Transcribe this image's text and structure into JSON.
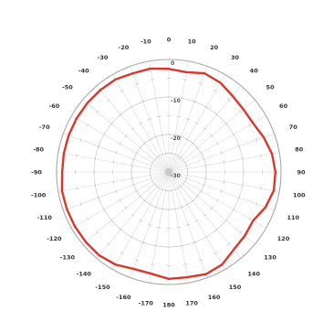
{
  "chart_data": {
    "type": "polar-line",
    "title": "",
    "angle_unit": "degrees",
    "zero_direction": "top",
    "angle_direction": "clockwise",
    "angle_ticks": [
      0,
      10,
      20,
      30,
      40,
      50,
      60,
      70,
      80,
      90,
      100,
      110,
      120,
      130,
      140,
      150,
      160,
      170,
      180,
      -170,
      -160,
      -150,
      -140,
      -130,
      -120,
      -110,
      -100,
      -90,
      -80,
      -70,
      -60,
      -50,
      -40,
      -30,
      -20,
      -10
    ],
    "angle_tick_labels": [
      "0",
      "10",
      "20",
      "30",
      "40",
      "50",
      "60",
      "70",
      "80",
      "90",
      "100",
      "110",
      "120",
      "130",
      "140",
      "150",
      "160",
      "170",
      "180",
      "-170",
      "-160",
      "-150",
      "-140",
      "-130",
      "-120",
      "-110",
      "-100",
      "-90",
      "-80",
      "-70",
      "-60",
      "-50",
      "-40",
      "-30",
      "-20",
      "-10"
    ],
    "radial_range": [
      -30,
      0
    ],
    "radial_ticks": [
      0,
      -10,
      -20,
      -30
    ],
    "radial_tick_labels": [
      "0",
      "-10",
      "-20",
      "-30"
    ],
    "grid": true,
    "series": [
      {
        "color": "#d9372b",
        "angles": [
          0,
          10,
          20,
          30,
          40,
          50,
          60,
          70,
          80,
          90,
          100,
          110,
          120,
          130,
          140,
          150,
          160,
          170,
          180,
          -170,
          -160,
          -150,
          -140,
          -130,
          -120,
          -110,
          -100,
          -90,
          -80,
          -70,
          -60,
          -50,
          -40,
          -30,
          -20,
          -10
        ],
        "values": [
          -2.5,
          -3.0,
          -2.0,
          -2.5,
          -3.5,
          -4.0,
          -4.0,
          -3.0,
          -2.0,
          -1.5,
          -1.5,
          -2.5,
          -4.0,
          -3.5,
          -3.0,
          -1.5,
          -1.0,
          -1.5,
          -1.5,
          -2.5,
          -2.5,
          -1.5,
          -1.0,
          -1.0,
          -1.0,
          -1.0,
          -1.0,
          -1.5,
          -1.5,
          -1.5,
          -1.5,
          -1.5,
          -1.5,
          -1.5,
          -2.0,
          -2.0
        ]
      }
    ]
  }
}
